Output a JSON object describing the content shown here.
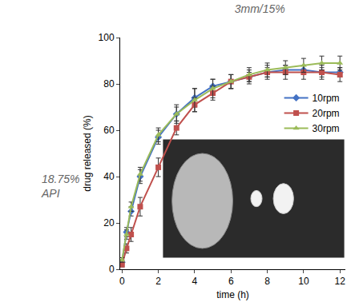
{
  "chart_data": {
    "type": "line",
    "title": "3mm/15%",
    "annotations": [
      {
        "lines": [
          "18.75%",
          "API"
        ]
      }
    ],
    "x_label": "time (h)",
    "y_label": "drug released (%)",
    "x": [
      0,
      0.25,
      0.5,
      1,
      2,
      3,
      4,
      5,
      6,
      7,
      8,
      9,
      10,
      11,
      12
    ],
    "series": [
      {
        "name": "10rpm",
        "color": "#4472c4",
        "marker": "diamond",
        "values": [
          3,
          16,
          25,
          40,
          57,
          67,
          74,
          79,
          81,
          83,
          85,
          86,
          86,
          85,
          85
        ],
        "errors": [
          1,
          2,
          2,
          3,
          3,
          3,
          4,
          3,
          3,
          2,
          2,
          2,
          2,
          2,
          2
        ]
      },
      {
        "name": "20rpm",
        "color": "#c0504d",
        "marker": "square",
        "values": [
          2,
          9,
          15,
          27,
          44,
          61,
          71,
          76,
          81,
          83,
          85,
          85,
          85,
          85,
          84
        ],
        "errors": [
          1,
          2,
          3,
          4,
          4,
          3,
          3,
          3,
          3,
          3,
          3,
          3,
          3,
          3,
          3
        ]
      },
      {
        "name": "30rpm",
        "color": "#9bbb59",
        "marker": "triangle-up",
        "values": [
          4,
          15,
          27,
          41,
          58,
          67,
          73,
          78,
          81,
          84,
          86,
          87,
          88,
          89,
          89
        ],
        "errors": [
          1,
          2,
          2,
          3,
          3,
          4,
          5,
          4,
          3,
          3,
          3,
          3,
          3,
          3,
          3
        ]
      }
    ],
    "xlim": [
      -0.1,
      12.3
    ],
    "xticks": [
      0,
      2,
      4,
      6,
      8,
      10,
      12
    ],
    "ylim": [
      0,
      100
    ],
    "yticks": [
      0,
      20,
      40,
      60,
      80,
      100
    ],
    "grid": false,
    "legend": "right"
  }
}
